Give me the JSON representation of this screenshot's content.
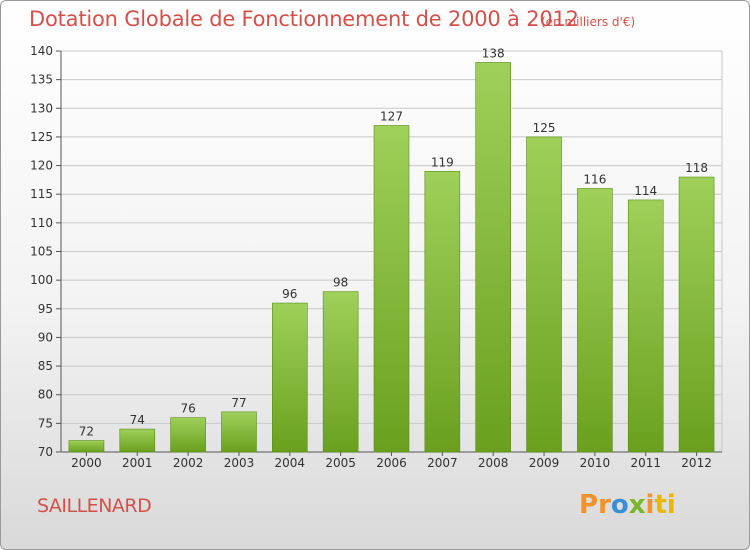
{
  "title": "Dotation Globale de Fonctionnement de 2000 à 2012",
  "unit_note": "(en milliers d'€)",
  "commune": "SAILLENARD",
  "logo": {
    "text": "Proxiti",
    "letters": [
      "P",
      "r",
      "o",
      "x",
      "i",
      "t",
      "i"
    ],
    "colors": [
      "#f0932b",
      "#f0932b",
      "#3a8fd8",
      "#7ab829",
      "#f0932b",
      "#e8b800",
      "#e8b800"
    ]
  },
  "colors": {
    "bar_top": "#9fd05a",
    "bar_bottom": "#6aa01e",
    "bar_border": "#5a8e1a",
    "title": "#d4504a",
    "grid": "#c8c8c8"
  },
  "chart_data": {
    "type": "bar",
    "title": "Dotation Globale de Fonctionnement de 2000 à 2012",
    "subtitle": "(en milliers d'€)",
    "xlabel": "",
    "ylabel": "",
    "categories": [
      "2000",
      "2001",
      "2002",
      "2003",
      "2004",
      "2005",
      "2006",
      "2007",
      "2008",
      "2009",
      "2010",
      "2011",
      "2012"
    ],
    "values": [
      72,
      74,
      76,
      77,
      96,
      98,
      127,
      119,
      138,
      125,
      116,
      114,
      118
    ],
    "ylim": [
      70,
      140
    ],
    "yticks": [
      70,
      75,
      80,
      85,
      90,
      95,
      100,
      105,
      110,
      115,
      120,
      125,
      130,
      135,
      140
    ],
    "grid": true,
    "data_labels": true
  }
}
